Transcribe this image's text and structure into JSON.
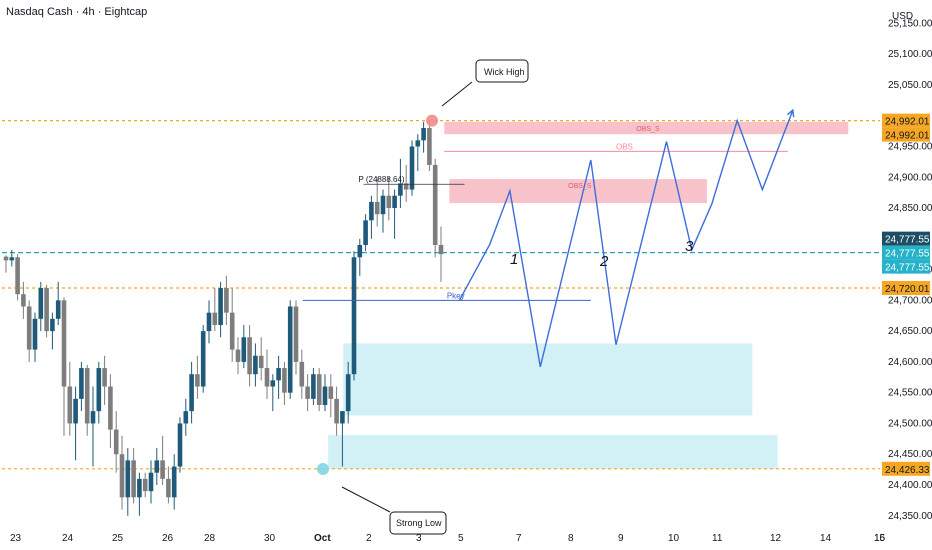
{
  "chart_data": {
    "type": "candlestick",
    "title": "Nasdaq Cash · 4h · Eightcap",
    "currency": "USD",
    "y_ticks": [
      "25,150.00",
      "25,100.00",
      "25,050.00",
      "24,950.00",
      "24,900.00",
      "24,850.00",
      "24,750.00",
      "24,700.00",
      "24,650.00",
      "24,600.00",
      "24,550.00",
      "24,500.00",
      "24,450.00",
      "24,400.00",
      "24,350.00"
    ],
    "y_tick_values": [
      25150,
      25100,
      25050,
      24950,
      24900,
      24850,
      24750,
      24700,
      24650,
      24600,
      24550,
      24500,
      24450,
      24400,
      24350
    ],
    "x_ticks": [
      "23",
      "24",
      "25",
      "26",
      "28",
      "30",
      "Oct",
      "2",
      "3",
      "5",
      "7",
      "8",
      "9",
      "10",
      "11",
      "12",
      "14",
      "15",
      "16"
    ],
    "x_tick_index": [
      0,
      12,
      22,
      32,
      42,
      54,
      64,
      74,
      84,
      94,
      104,
      114,
      124,
      134,
      143,
      152,
      163,
      172,
      182
    ],
    "price_badges": [
      {
        "text": "24,992.01",
        "value": 24992.01,
        "bg": "#f5a623",
        "fg": "#131722"
      },
      {
        "text": "24,992.01",
        "value": 24992.01,
        "bg": "#f5a623",
        "fg": "#131722",
        "offset": 1
      },
      {
        "text": "24,777.55",
        "value": 24777.55,
        "bg": "#1e4e63",
        "fg": "#ffffff",
        "offset": -1
      },
      {
        "text": "24,777.55",
        "value": 24777.55,
        "bg": "#26b3c9",
        "fg": "#ffffff"
      },
      {
        "text": "24,777.55",
        "value": 24777.55,
        "bg": "#26b3c9",
        "fg": "#ffffff",
        "offset": 1
      },
      {
        "text": "24,720.01",
        "value": 24720.01,
        "bg": "#f5a623",
        "fg": "#131722"
      },
      {
        "text": "24,426.33",
        "value": 24426.33,
        "bg": "#f5a623",
        "fg": "#131722"
      }
    ],
    "h_lines": [
      {
        "value": 24992.01,
        "color": "#f5a623",
        "dash": "3,3"
      },
      {
        "value": 24777.55,
        "color": "#26a6b8",
        "dash": "5,3"
      },
      {
        "value": 24720.01,
        "color": "#f5a623",
        "dash": "3,3"
      },
      {
        "value": 24426.33,
        "color": "#f5a623",
        "dash": "3,3"
      }
    ],
    "zones": [
      {
        "i0": 86,
        "i1": 166,
        "y0": 24990,
        "y1": 24970,
        "fill": "#f6b7c1",
        "label": "OBS_S"
      },
      {
        "i0": 87,
        "i1": 138,
        "y0": 24897,
        "y1": 24858,
        "fill": "#f6b7c1",
        "label": "OBS_S"
      },
      {
        "i0": 66,
        "i1": 147,
        "y0": 24630,
        "y1": 24513,
        "fill": "#c9eff5",
        "label": ""
      },
      {
        "i0": 63,
        "i1": 152,
        "y0": 24481,
        "y1": 24426,
        "fill": "#c9eff5",
        "label": ""
      }
    ],
    "lines_labeled": [
      {
        "i0": 86,
        "i1": 154,
        "value": 24942,
        "color": "#f48d9b",
        "label": "OBS"
      },
      {
        "i0": 58,
        "i1": 115,
        "value": 24700,
        "color": "#3c63c7",
        "label": "Pkey"
      }
    ],
    "pivot_label": "P (24888.64)",
    "callouts": [
      "Wick High",
      "Strong Low"
    ],
    "wave_labels": [
      "1",
      "2",
      "3"
    ],
    "projection_path": [
      [
        89,
        24700
      ],
      [
        95,
        24791
      ],
      [
        99,
        24878
      ],
      [
        105,
        24592
      ],
      [
        115,
        24928
      ],
      [
        120,
        24628
      ],
      [
        130,
        24958
      ],
      [
        135,
        24782
      ],
      [
        139,
        24857
      ],
      [
        144,
        24992
      ],
      [
        149,
        24880
      ],
      [
        155,
        25009
      ]
    ],
    "candles": [
      [
        24771,
        24773,
        24745,
        24765
      ],
      [
        24765,
        24782,
        24755,
        24770
      ],
      [
        24770,
        24775,
        24700,
        24710
      ],
      [
        24710,
        24730,
        24670,
        24690
      ],
      [
        24690,
        24700,
        24600,
        24620
      ],
      [
        24620,
        24680,
        24600,
        24670
      ],
      [
        24670,
        24730,
        24650,
        24720
      ],
      [
        24720,
        24725,
        24640,
        24650
      ],
      [
        24650,
        24680,
        24620,
        24670
      ],
      [
        24670,
        24730,
        24660,
        24700
      ],
      [
        24700,
        24705,
        24480,
        24560
      ],
      [
        24560,
        24600,
        24480,
        24500
      ],
      [
        24500,
        24560,
        24440,
        24540
      ],
      [
        24540,
        24600,
        24520,
        24590
      ],
      [
        24590,
        24595,
        24480,
        24500
      ],
      [
        24500,
        24560,
        24430,
        24520
      ],
      [
        24520,
        24600,
        24500,
        24590
      ],
      [
        24590,
        24610,
        24530,
        24560
      ],
      [
        24560,
        24580,
        24460,
        24490
      ],
      [
        24490,
        24520,
        24420,
        24450
      ],
      [
        24450,
        24480,
        24360,
        24380
      ],
      [
        24380,
        24460,
        24350,
        24440
      ],
      [
        24440,
        24460,
        24370,
        24380
      ],
      [
        24380,
        24420,
        24350,
        24410
      ],
      [
        24410,
        24420,
        24380,
        24390
      ],
      [
        24390,
        24440,
        24370,
        24420
      ],
      [
        24420,
        24460,
        24400,
        24440
      ],
      [
        24440,
        24480,
        24400,
        24410
      ],
      [
        24410,
        24430,
        24370,
        24380
      ],
      [
        24380,
        24450,
        24360,
        24430
      ],
      [
        24430,
        24510,
        24420,
        24500
      ],
      [
        24500,
        24540,
        24480,
        24520
      ],
      [
        24520,
        24600,
        24500,
        24580
      ],
      [
        24580,
        24610,
        24540,
        24560
      ],
      [
        24560,
        24660,
        24550,
        24650
      ],
      [
        24650,
        24700,
        24630,
        24680
      ],
      [
        24680,
        24720,
        24650,
        24660
      ],
      [
        24660,
        24730,
        24640,
        24720
      ],
      [
        24720,
        24740,
        24660,
        24680
      ],
      [
        24680,
        24720,
        24600,
        24620
      ],
      [
        24620,
        24640,
        24580,
        24600
      ],
      [
        24600,
        24660,
        24590,
        24640
      ],
      [
        24640,
        24660,
        24560,
        24580
      ],
      [
        24580,
        24630,
        24560,
        24610
      ],
      [
        24610,
        24640,
        24570,
        24590
      ],
      [
        24590,
        24620,
        24540,
        24560
      ],
      [
        24560,
        24580,
        24520,
        24570
      ],
      [
        24570,
        24610,
        24540,
        24590
      ],
      [
        24590,
        24600,
        24530,
        24550
      ],
      [
        24550,
        24700,
        24540,
        24690
      ],
      [
        24690,
        24700,
        24580,
        24600
      ],
      [
        24600,
        24620,
        24540,
        24560
      ],
      [
        24560,
        24580,
        24520,
        24540
      ],
      [
        24540,
        24590,
        24530,
        24580
      ],
      [
        24580,
        24590,
        24520,
        24530
      ],
      [
        24530,
        24580,
        24520,
        24560
      ],
      [
        24560,
        24580,
        24510,
        24540
      ],
      [
        24540,
        24560,
        24480,
        24500
      ],
      [
        24500,
        24520,
        24430,
        24520
      ],
      [
        24520,
        24600,
        24500,
        24580
      ],
      [
        24580,
        24780,
        24570,
        24770
      ],
      [
        24770,
        24800,
        24740,
        24790
      ],
      [
        24790,
        24840,
        24780,
        24830
      ],
      [
        24830,
        24870,
        24800,
        24860
      ],
      [
        24860,
        24900,
        24820,
        24840
      ],
      [
        24840,
        24880,
        24810,
        24870
      ],
      [
        24870,
        24900,
        24830,
        24850
      ],
      [
        24850,
        24880,
        24800,
        24870
      ],
      [
        24870,
        24930,
        24850,
        24890
      ],
      [
        24890,
        24920,
        24860,
        24880
      ],
      [
        24880,
        24960,
        24870,
        24950
      ],
      [
        24950,
        24970,
        24910,
        24960
      ],
      [
        24960,
        24990,
        24940,
        24980
      ],
      [
        24980,
        24992,
        24910,
        24920
      ],
      [
        24920,
        24930,
        24770,
        24790
      ],
      [
        24790,
        24820,
        24730,
        24775
      ]
    ],
    "candle_start_index": 0,
    "candle_index_step": 1.3,
    "ylim": [
      24335,
      25175
    ],
    "colors": {
      "up": "#1f5a7a",
      "down": "#7d7d7d",
      "projection": "#3d6ddb",
      "grid": "#ffffff"
    }
  }
}
